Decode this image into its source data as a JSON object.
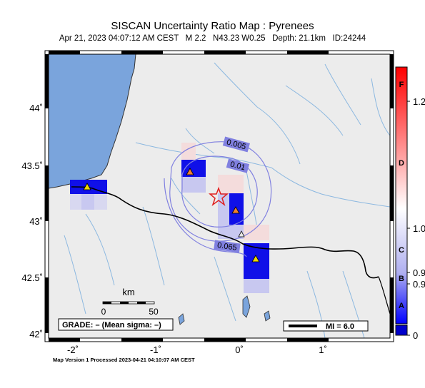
{
  "title": "SISCAN Uncertainty Ratio Map : Pyrenees",
  "subtitle": "Apr 21, 2023 04:07:12 AM CEST   M 2.2   N43.23 W0.25   Depth: 21.1km   ID:24244",
  "footer": "Map Version 1 Processed 2023-04-21 04:10:07 AM CEST",
  "axes": {
    "x_ticks": [
      "-2˚",
      "-1˚",
      "0˚",
      "1˚"
    ],
    "y_ticks": [
      "44˚",
      "43.5˚",
      "43˚",
      "42.5˚",
      "42˚"
    ]
  },
  "contours": [
    "0.005",
    "0.01",
    "0.065"
  ],
  "scale_bar": {
    "unit": "km",
    "start": "0",
    "end": "50"
  },
  "grade_box": "GRADE: – (Mean sigma: –)",
  "mi_legend": "MI = 6.0",
  "colorbar": {
    "letters": [
      "F",
      "D",
      "C",
      "B",
      "A"
    ],
    "values": [
      "1.2",
      "1.0",
      "0.9",
      "0.9",
      "0"
    ]
  },
  "epicenter": {
    "lat": 43.23,
    "lon": -0.25
  },
  "stations": [
    {
      "lon": -1.8,
      "lat": 43.33,
      "color": "#f0d800"
    },
    {
      "lon": -0.6,
      "lat": 43.45,
      "color": "#f08030"
    },
    {
      "lon": -0.05,
      "lat": 43.1,
      "color": "#f08030"
    },
    {
      "lon": 0.2,
      "lat": 42.7,
      "color": "#f0d800"
    },
    {
      "lon": 0.02,
      "lat": 42.98,
      "color": "#c8c8c8"
    }
  ],
  "colors": {
    "land": "#ececec",
    "sea": "#7aa4dc",
    "river": "#8cb8e0",
    "cell_dark": "#1010e8",
    "cell_mid": "#6a6ae8",
    "cell_light": "#c8c8f0",
    "contour": "#8080e0"
  }
}
